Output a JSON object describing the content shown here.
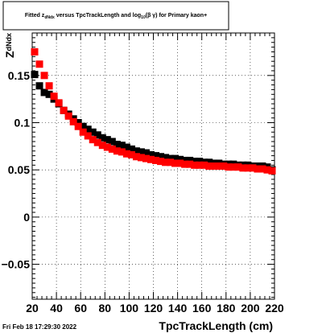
{
  "title_parts": {
    "prefix": "Fitted  z",
    "sub1": "dNdx",
    "middle": "  versus TpcTrackLength and log",
    "sub2": "10",
    "suffix": "(β γ) for Primary kaon+"
  },
  "footer": {
    "timestamp": "Fri Feb 18 17:29:30 2022"
  },
  "chart_data": {
    "type": "scatter",
    "title": "Fitted z_dNdx versus TpcTrackLength and log10(β γ) for Primary kaon+",
    "xlabel": "TpcTrackLength (cm)",
    "ylabel_main": "Z",
    "ylabel_sub": "dNdx",
    "xlim": [
      20,
      220
    ],
    "ylim": [
      -0.087,
      0.195
    ],
    "grid": true,
    "x_ticks": [
      20,
      40,
      60,
      80,
      100,
      120,
      140,
      160,
      180,
      200,
      220
    ],
    "x_tick_labels": [
      "20",
      "40",
      "60",
      "80",
      "100",
      "120",
      "140",
      "160",
      "180",
      "200",
      "220"
    ],
    "y_ticks": [
      -0.05,
      0,
      0.05,
      0.1,
      0.15
    ],
    "y_tick_labels": [
      "−0.05",
      "0",
      "0.05",
      "0.1",
      "0.15"
    ],
    "series": [
      {
        "color": "#000000",
        "x": [
          22,
          26,
          30,
          34,
          38,
          42,
          46,
          50,
          54,
          58,
          62,
          66,
          70,
          74,
          78,
          82,
          86,
          90,
          94,
          98,
          102,
          106,
          110,
          114,
          118,
          122,
          126,
          130,
          134,
          138,
          142,
          146,
          150,
          154,
          158,
          162,
          166,
          170,
          174,
          178,
          182,
          186,
          190,
          194,
          198,
          202,
          206,
          210,
          214,
          218
        ],
        "y": [
          0.151,
          0.139,
          0.132,
          0.13,
          0.125,
          0.12,
          0.113,
          0.109,
          0.104,
          0.1,
          0.096,
          0.093,
          0.09,
          0.087,
          0.084,
          0.082,
          0.08,
          0.077,
          0.076,
          0.074,
          0.072,
          0.07,
          0.069,
          0.068,
          0.066,
          0.065,
          0.064,
          0.063,
          0.062,
          0.062,
          0.061,
          0.06,
          0.06,
          0.059,
          0.059,
          0.058,
          0.058,
          0.057,
          0.057,
          0.056,
          0.056,
          0.056,
          0.055,
          0.055,
          0.055,
          0.054,
          0.054,
          0.054,
          0.053,
          0.05
        ]
      },
      {
        "color": "#ff0000",
        "x": [
          22,
          26,
          30,
          34,
          38,
          42,
          46,
          50,
          54,
          58,
          62,
          66,
          70,
          74,
          78,
          82,
          86,
          90,
          94,
          98,
          102,
          106,
          110,
          114,
          118,
          122,
          126,
          130,
          134,
          138,
          142,
          146,
          150,
          154,
          158,
          162,
          166,
          170,
          174,
          178,
          182,
          186,
          190,
          194,
          198,
          202,
          206,
          210,
          214,
          218
        ],
        "y": [
          0.175,
          0.162,
          0.15,
          0.139,
          0.128,
          0.121,
          0.113,
          0.107,
          0.101,
          0.096,
          0.09,
          0.086,
          0.082,
          0.079,
          0.076,
          0.074,
          0.072,
          0.07,
          0.069,
          0.067,
          0.066,
          0.064,
          0.063,
          0.062,
          0.061,
          0.06,
          0.059,
          0.058,
          0.058,
          0.057,
          0.057,
          0.056,
          0.056,
          0.055,
          0.055,
          0.055,
          0.054,
          0.054,
          0.054,
          0.054,
          0.053,
          0.053,
          0.053,
          0.052,
          0.052,
          0.052,
          0.051,
          0.051,
          0.05,
          0.049
        ]
      }
    ]
  }
}
